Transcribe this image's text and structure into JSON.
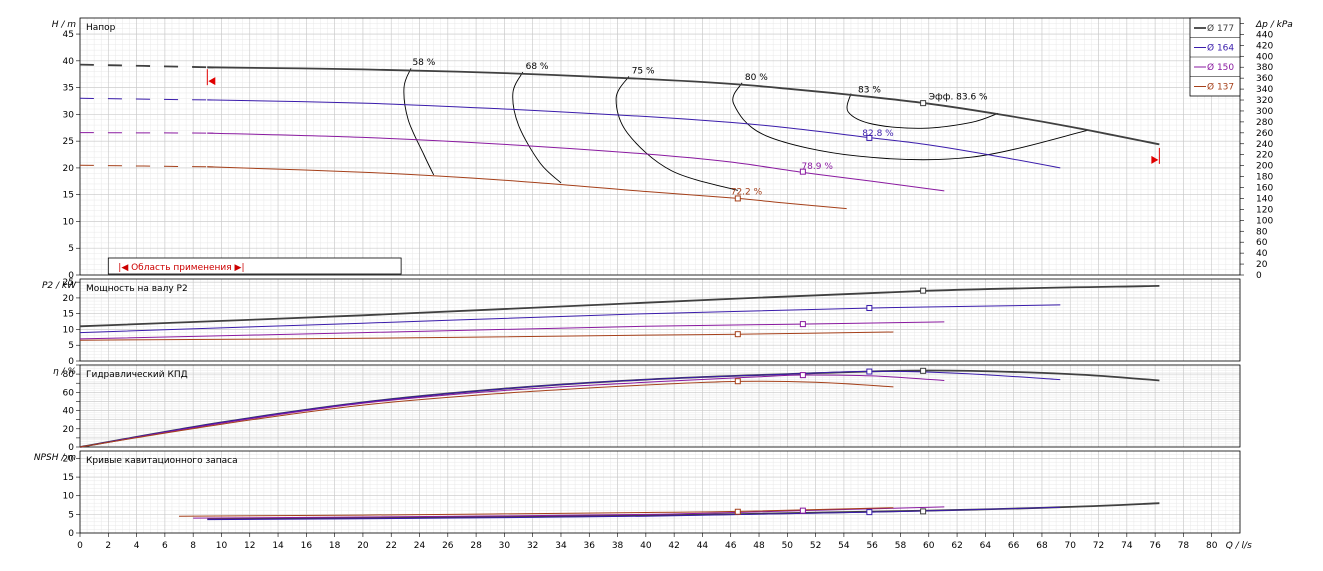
{
  "chart_data": {
    "type": "line",
    "x_axis": {
      "label": "Q / l/s",
      "range": [
        0,
        82
      ],
      "tick_step": 2
    },
    "legend": {
      "placement": "top-right",
      "entries": [
        {
          "label": "Ø 177",
          "color": "#404040"
        },
        {
          "label": "Ø 164",
          "color": "#3a1cab"
        },
        {
          "label": "Ø 150",
          "color": "#8a1aa0"
        },
        {
          "label": "Ø 137",
          "color": "#a5401a"
        }
      ]
    },
    "panels": [
      {
        "id": "head",
        "title": "Напор",
        "ylabel": "H / m",
        "ylim": [
          0,
          48
        ],
        "ytick_step": 5,
        "y2label": "Δp / kPa",
        "y2lim": [
          0,
          470
        ],
        "y2tick_step": 20,
        "range_box_label": "|◀ Область применения ▶|",
        "series": [
          {
            "name": "Ø 177",
            "color": "#404040",
            "lw": 1.8,
            "dash_end": 9,
            "x": [
              0,
              9,
              20,
              30,
              40,
              46,
              50,
              55,
              60,
              65,
              70,
              76.3
            ],
            "y": [
              39.3,
              38.8,
              38.4,
              37.7,
              36.6,
              35.7,
              34.8,
              33.5,
              32.0,
              30.0,
              27.7,
              24.4
            ]
          },
          {
            "name": "Ø 164",
            "color": "#3a1cab",
            "lw": 1,
            "dash_end": 9,
            "x": [
              0,
              9,
              20,
              30,
              40,
              46,
              50,
              56,
              60,
              65,
              69.3
            ],
            "y": [
              33.0,
              32.7,
              32.1,
              31.0,
              29.6,
              28.5,
              27.5,
              25.6,
              24.3,
              22.1,
              20.0
            ]
          },
          {
            "name": "Ø 150",
            "color": "#8a1aa0",
            "lw": 1,
            "dash_end": 9,
            "x": [
              0,
              9,
              20,
              30,
              40,
              46,
              51,
              56,
              61.1
            ],
            "y": [
              26.6,
              26.5,
              25.7,
              24.4,
              22.6,
              21.1,
              19.2,
              17.5,
              15.7
            ]
          },
          {
            "name": "Ø 137",
            "color": "#a5401a",
            "lw": 1,
            "dash_end": 9,
            "x": [
              0,
              9,
              20,
              30,
              40,
              46.5,
              50,
              54.2
            ],
            "y": [
              20.5,
              20.2,
              19.2,
              17.7,
              15.6,
              14.3,
              13.4,
              12.4
            ]
          }
        ],
        "efficiency_labels": [
          {
            "text": "58 %",
            "x": 23.5,
            "y": 39.2
          },
          {
            "text": "68 %",
            "x": 31.5,
            "y": 38.5
          },
          {
            "text": "75 %",
            "x": 39.0,
            "y": 37.6
          },
          {
            "text": "80 %",
            "x": 47.0,
            "y": 36.4
          },
          {
            "text": "83 %",
            "x": 55.0,
            "y": 34.1
          },
          {
            "text": "Эфф.  83.6 %",
            "x": 60.0,
            "y": 32.8
          },
          {
            "text": "82.8 %",
            "x": 55.3,
            "y": 26.0
          },
          {
            "text": "78.9 %",
            "x": 51.0,
            "y": 19.8
          },
          {
            "text": "72.2 %",
            "x": 46.0,
            "y": 15.0
          }
        ],
        "bep_markers": [
          {
            "x": 59.6,
            "y": 32.1,
            "color": "#404040"
          },
          {
            "x": 55.8,
            "y": 25.6,
            "color": "#3a1cab"
          },
          {
            "x": 51.1,
            "y": 19.3,
            "color": "#8a1aa0"
          },
          {
            "x": 46.5,
            "y": 14.3,
            "color": "#a5401a"
          }
        ],
        "iso_efficiency": [
          {
            "x": [
              23.4,
              22.9,
              23.2,
              24.3,
              25.0
            ],
            "y": [
              38.6,
              35.0,
              29.0,
              22.5,
              18.7
            ]
          },
          {
            "x": [
              31.3,
              30.6,
              31.0,
              32.5,
              34.0
            ],
            "y": [
              37.9,
              34.0,
              28.0,
              21.0,
              17.2
            ]
          },
          {
            "x": [
              38.8,
              37.9,
              38.7,
              41.8,
              46.5
            ],
            "y": [
              37.1,
              33.0,
              26.5,
              19.5,
              15.8
            ]
          },
          {
            "x": [
              46.8,
              46.2,
              48.5,
              55.0,
              63.0,
              71.2
            ],
            "y": [
              35.9,
              32.0,
              26.0,
              22.2,
              22.0,
              27.0
            ]
          },
          {
            "x": [
              54.5,
              54.3,
              56.0,
              59.5,
              63.0,
              64.9
            ],
            "y": [
              33.9,
              30.5,
              28.2,
              27.4,
              28.5,
              30.2
            ]
          }
        ],
        "markers": [
          {
            "x": 9.0,
            "y": 36.2,
            "dir": "left"
          },
          {
            "x": 76.3,
            "y": 21.5,
            "dir": "right"
          }
        ]
      },
      {
        "id": "power",
        "title": "Мощность на валу P2",
        "ylabel": "P2 / kW",
        "ylim": [
          0,
          26
        ],
        "ytick_step": 5,
        "series": [
          {
            "name": "Ø 177",
            "color": "#404040",
            "lw": 1.8,
            "x": [
              0,
              20,
              40,
              60,
              76.3
            ],
            "y": [
              11.0,
              14.5,
              18.5,
              22.3,
              23.8
            ]
          },
          {
            "name": "Ø 164",
            "color": "#3a1cab",
            "lw": 1,
            "x": [
              0,
              20,
              40,
              56,
              69.3
            ],
            "y": [
              9.0,
              12.0,
              15.0,
              16.8,
              17.8
            ]
          },
          {
            "name": "Ø 150",
            "color": "#8a1aa0",
            "lw": 1,
            "x": [
              0,
              20,
              40,
              51,
              61.1
            ],
            "y": [
              7.0,
              9.0,
              11.0,
              11.7,
              12.4
            ]
          },
          {
            "name": "Ø 137",
            "color": "#a5401a",
            "lw": 1,
            "x": [
              0,
              20,
              40,
              46.5,
              57.5
            ],
            "y": [
              6.6,
              7.2,
              8.2,
              8.5,
              9.2
            ]
          }
        ],
        "bep_markers": [
          {
            "x": 59.6,
            "y": 22.3,
            "color": "#404040"
          },
          {
            "x": 55.8,
            "y": 16.8,
            "color": "#3a1cab"
          },
          {
            "x": 51.1,
            "y": 11.7,
            "color": "#8a1aa0"
          },
          {
            "x": 46.5,
            "y": 8.5,
            "color": "#a5401a"
          }
        ]
      },
      {
        "id": "efficiency",
        "title": "Гидравлический КПД",
        "ylabel": "η / %",
        "ylim": [
          0,
          90
        ],
        "ytick_step": 10,
        "ytick_label_step": 20,
        "series": [
          {
            "name": "Ø 177",
            "color": "#404040",
            "lw": 1.8,
            "x": [
              0,
              10,
              20,
              30,
              40,
              50,
              60,
              70,
              76.3
            ],
            "y": [
              0,
              27,
              49,
              64,
              74,
              80,
              84,
              80,
              73
            ]
          },
          {
            "name": "Ø 164",
            "color": "#3a1cab",
            "lw": 1,
            "x": [
              0,
              10,
              20,
              30,
              40,
              50,
              56,
              62,
              69.3
            ],
            "y": [
              0,
              27,
              49,
              64,
              74,
              80,
              83,
              81,
              74
            ]
          },
          {
            "name": "Ø 150",
            "color": "#8a1aa0",
            "lw": 1,
            "x": [
              0,
              10,
              20,
              30,
              40,
              48,
              51,
              56,
              61.1
            ],
            "y": [
              0,
              26,
              48,
              62,
              71,
              77,
              79,
              78,
              73
            ]
          },
          {
            "name": "Ø 137",
            "color": "#a5401a",
            "lw": 1,
            "x": [
              0,
              10,
              20,
              30,
              40,
              46.5,
              52,
              57.5
            ],
            "y": [
              0,
              25,
              46,
              59,
              68,
              72,
              71,
              66
            ]
          }
        ],
        "bep_markers": [
          {
            "x": 59.6,
            "y": 83.6,
            "color": "#404040"
          },
          {
            "x": 55.8,
            "y": 82.8,
            "color": "#3a1cab"
          },
          {
            "x": 51.1,
            "y": 78.9,
            "color": "#8a1aa0"
          },
          {
            "x": 46.5,
            "y": 72.2,
            "color": "#a5401a"
          }
        ]
      },
      {
        "id": "npsh",
        "title": "Кривые кавитационного запаса",
        "ylabel": "NPSH / m",
        "ylim": [
          0,
          22
        ],
        "ytick_step": 5,
        "series": [
          {
            "name": "Ø 177",
            "color": "#404040",
            "lw": 1.8,
            "x": [
              9,
              20,
              40,
              60,
              70,
              76.3
            ],
            "y": [
              3.8,
              4.0,
              4.7,
              6.0,
              7.0,
              8.0
            ]
          },
          {
            "name": "Ø 164",
            "color": "#3a1cab",
            "lw": 1,
            "x": [
              9,
              20,
              40,
              56,
              69.3
            ],
            "y": [
              3.6,
              3.8,
              4.5,
              5.6,
              6.9
            ]
          },
          {
            "name": "Ø 150",
            "color": "#8a1aa0",
            "lw": 1,
            "x": [
              8,
              20,
              40,
              51,
              61.1
            ],
            "y": [
              4.0,
              4.3,
              5.0,
              6.0,
              7.0
            ]
          },
          {
            "name": "Ø 137",
            "color": "#a5401a",
            "lw": 1,
            "x": [
              7,
              20,
              40,
              46.5,
              57.5
            ],
            "y": [
              4.5,
              4.8,
              5.5,
              5.8,
              6.8
            ]
          }
        ],
        "bep_markers": [
          {
            "x": 59.6,
            "y": 5.8,
            "color": "#404040"
          },
          {
            "x": 55.8,
            "y": 5.6,
            "color": "#3a1cab"
          },
          {
            "x": 51.1,
            "y": 6.0,
            "color": "#8a1aa0"
          },
          {
            "x": 46.5,
            "y": 5.7,
            "color": "#a5401a"
          }
        ]
      }
    ]
  }
}
